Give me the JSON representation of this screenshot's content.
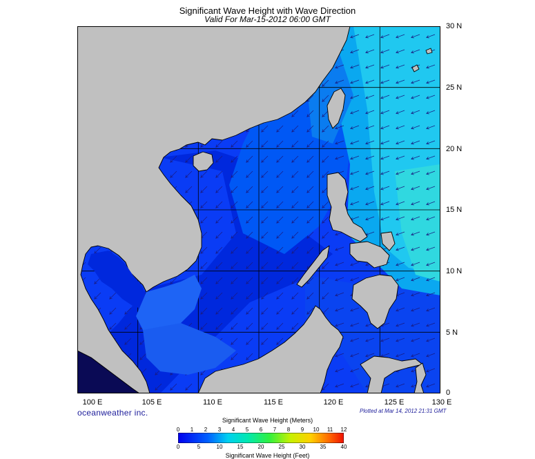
{
  "title": "Significant Wave Height with Wave Direction",
  "subtitle": "Valid For Mar-15-2012 06:00 GMT",
  "lat_labels": [
    "30 N",
    "25 N",
    "20 N",
    "15 N",
    "10 N",
    "5 N",
    "0"
  ],
  "lon_labels": [
    "100 E",
    "105 E",
    "110 E",
    "115 E",
    "120 E",
    "125 E",
    "130 E"
  ],
  "brand": "oceanweather inc.",
  "plotted": "Plotted at Mar 14, 2012 21:31 GMT",
  "legend": {
    "meters_title": "Significant Wave Height (Meters)",
    "feet_title": "Significant Wave Height (Feet)",
    "meters_ticks": [
      "0",
      "1",
      "2",
      "3",
      "4",
      "5",
      "6",
      "7",
      "8",
      "9",
      "10",
      "11",
      "12"
    ],
    "feet_ticks": [
      "0",
      "5",
      "10",
      "15",
      "20",
      "25",
      "30",
      "35",
      "40"
    ]
  },
  "colors": {
    "land": "#c0c0c0",
    "ocean_low": "#0000ee",
    "ocean_mid": "#0055ff",
    "ocean_high": "#00c8f0",
    "arrow": "#1a1a80"
  },
  "extent": {
    "lon_min": 100,
    "lon_max": 130,
    "lat_min": 0,
    "lat_max": 30
  }
}
